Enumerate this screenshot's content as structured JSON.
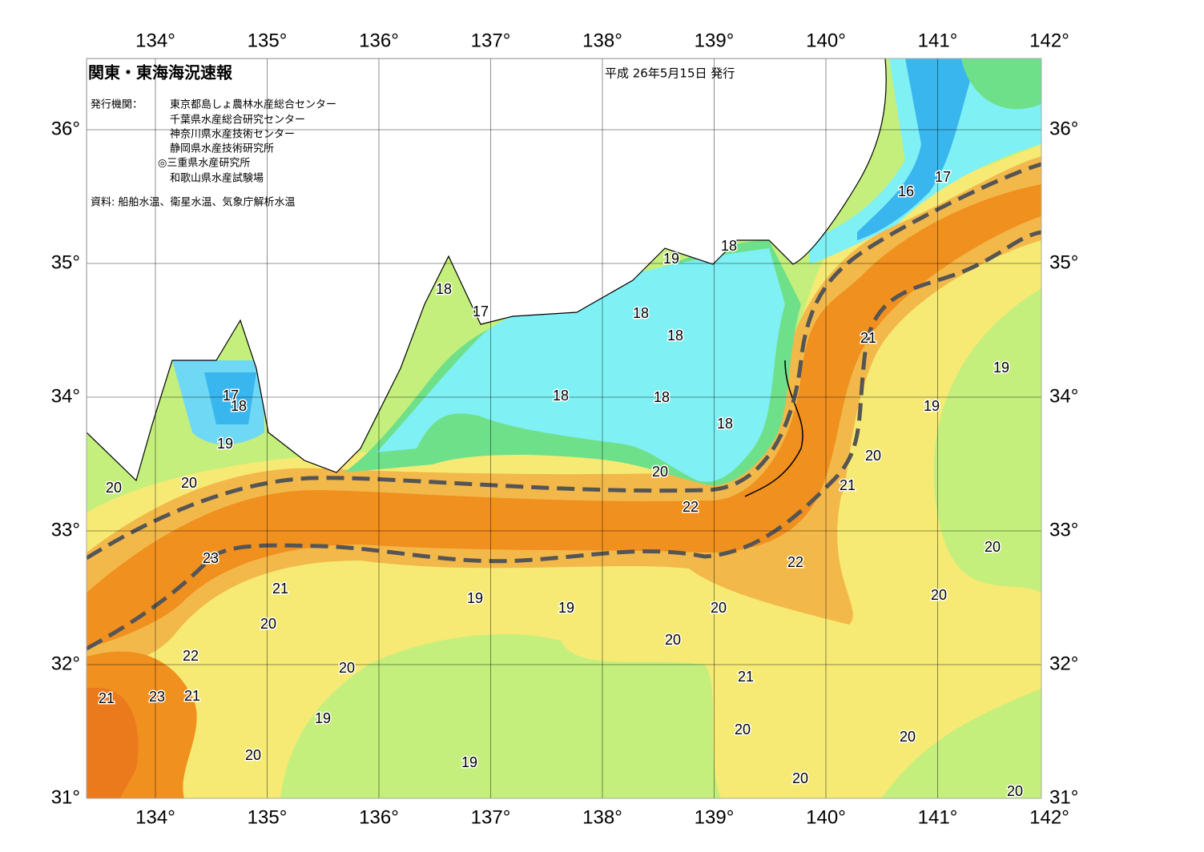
{
  "header": {
    "title": "関東・東海海況速報",
    "date": "平成 26年5月15日 発行",
    "issuer_heading": "発行機関：",
    "issuers": [
      "東京都島しょ農林水産総合センター",
      "千葉県水産総合研究センター",
      "神奈川県水産技術センター",
      "静岡県水産技術研究所",
      "◎三重県水産研究所",
      "和歌山県水産試験場"
    ],
    "source": "資料: 船舶水温、衛星水温、気象庁解析水温"
  },
  "longitude_labels": [
    "134°",
    "135°",
    "136°",
    "137°",
    "138°",
    "139°",
    "140°",
    "141°",
    "142°"
  ],
  "latitude_labels": [
    "36°",
    "35°",
    "34°",
    "33°",
    "32°",
    "31°"
  ],
  "contour_labels": [
    "16",
    "17",
    "19",
    "18",
    "18",
    "17",
    "18",
    "18",
    "21",
    "19",
    "18",
    "18",
    "19",
    "17",
    "18",
    "18",
    "19",
    "20",
    "20",
    "20",
    "20",
    "21",
    "22",
    "20",
    "23",
    "22",
    "21",
    "19",
    "19",
    "20",
    "20",
    "20",
    "20",
    "22",
    "20",
    "21",
    "21",
    "23",
    "21",
    "19",
    "20",
    "20",
    "20",
    "19",
    "20",
    "20"
  ]
}
